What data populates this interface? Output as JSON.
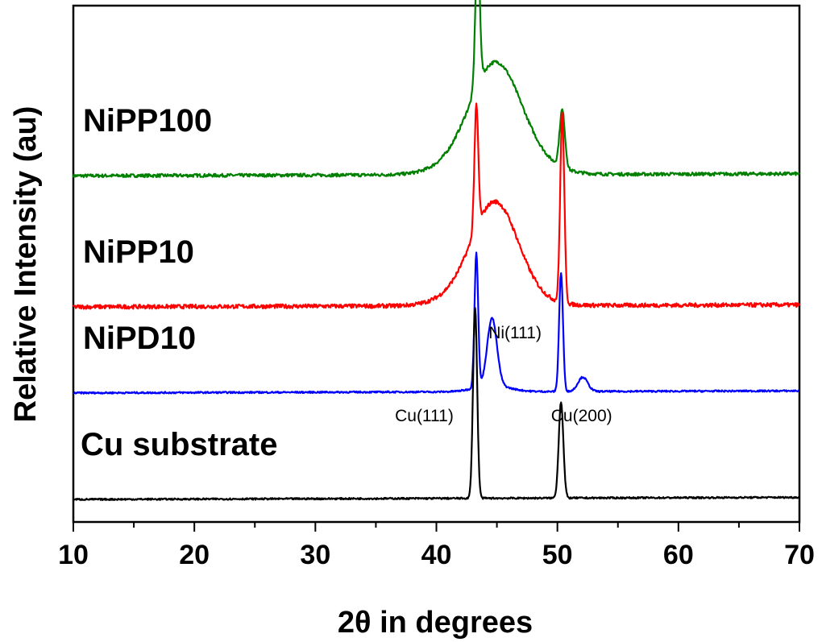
{
  "chart_data": {
    "type": "line",
    "xlabel": "2θ in degrees",
    "ylabel": "Relative Intensity (au)",
    "xlim": [
      10,
      70
    ],
    "x_ticks": [
      "10",
      "20",
      "30",
      "40",
      "50",
      "60",
      "70"
    ],
    "y_ticks_shown": false,
    "grid": false,
    "series": [
      {
        "name": "NiPP100",
        "color": "#008000",
        "baseline": 7.9,
        "noise": 0.04,
        "peaks": [
          {
            "x": 43.4,
            "height": 3.5,
            "width": 0.18
          },
          {
            "x": 44.9,
            "height": 1.85,
            "width": 2.0
          },
          {
            "x": 50.4,
            "height": 1.4,
            "width": 0.22
          }
        ],
        "hump": {
          "x": 44.9,
          "height": 0.9,
          "width": 4.0
        }
      },
      {
        "name": "NiPP10",
        "color": "#ff0000",
        "baseline": 4.7,
        "noise": 0.05,
        "peaks": [
          {
            "x": 43.3,
            "height": 3.0,
            "width": 0.16
          },
          {
            "x": 44.9,
            "height": 1.75,
            "width": 1.8
          },
          {
            "x": 50.4,
            "height": 4.6,
            "width": 0.17
          }
        ],
        "hump": {
          "x": 44.5,
          "height": 0.8,
          "width": 3.6
        }
      },
      {
        "name": "NiPD10",
        "color": "#0000ff",
        "baseline": 2.6,
        "noise": 0.02,
        "peaks": [
          {
            "x": 43.3,
            "height": 3.3,
            "width": 0.15
          },
          {
            "x": 44.6,
            "height": 1.65,
            "width": 0.4
          },
          {
            "x": 50.3,
            "height": 2.9,
            "width": 0.16
          },
          {
            "x": 52.1,
            "height": 0.35,
            "width": 0.4
          }
        ],
        "hump": {
          "x": 44.6,
          "height": 0.15,
          "width": 2.0
        }
      },
      {
        "name": "Cu substrate",
        "color": "#000000",
        "baseline": 0.0,
        "noise": 0.02,
        "peaks": [
          {
            "x": 43.2,
            "height": 4.65,
            "width": 0.17
          },
          {
            "x": 50.3,
            "height": 2.35,
            "width": 0.19
          }
        ],
        "hump": {
          "x": 45,
          "height": 0.0,
          "width": 3
        }
      }
    ],
    "annotations": [
      {
        "text": "Ni(111)",
        "x": 46.5,
        "series": "NiPD10"
      },
      {
        "text": "Cu(111)",
        "x": 39.0,
        "series": "Cu substrate"
      },
      {
        "text": "Cu(200)",
        "x": 52.0,
        "series": "Cu substrate"
      }
    ]
  }
}
